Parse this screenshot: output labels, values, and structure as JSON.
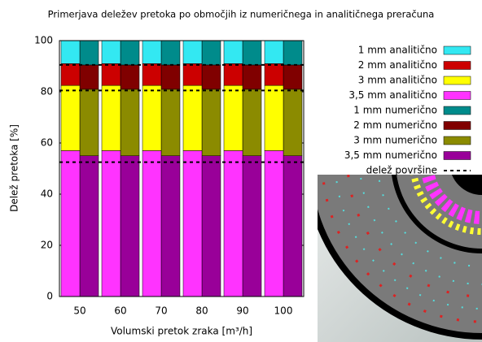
{
  "chart_data": {
    "type": "grouped_stacked_bar",
    "title": "Primerjava deležev pretoka po območjih iz numeričnega in analitičnega preračuna",
    "x_label": "Volumski pretok zraka [m³/h]",
    "y_label": "Delež pretoka [%]",
    "categories": [
      "50",
      "60",
      "70",
      "80",
      "90",
      "100"
    ],
    "series": [
      {
        "name": "1 mm analitično",
        "color": "#33e8f2",
        "stack": 0,
        "values": [
          9,
          9,
          9,
          9,
          9,
          9
        ]
      },
      {
        "name": "2 mm analitično",
        "color": "#cc0000",
        "stack": 0,
        "values": [
          8.5,
          8.5,
          8.5,
          8.5,
          8.5,
          8.5
        ]
      },
      {
        "name": "3 mm analitično",
        "color": "#ffff00",
        "stack": 0,
        "values": [
          25.5,
          25.5,
          25.5,
          25.5,
          25.5,
          25.5
        ]
      },
      {
        "name": "3,5 mm analitično",
        "color": "#ff33ff",
        "stack": 0,
        "values": [
          57,
          57,
          57,
          57,
          57,
          57
        ]
      },
      {
        "name": "1 mm numerično",
        "color": "#008b8b",
        "stack": 1,
        "values": [
          9.5,
          9.5,
          9.5,
          9.5,
          9.5,
          9.5
        ]
      },
      {
        "name": "2 mm numerično",
        "color": "#800000",
        "stack": 1,
        "values": [
          9.5,
          9.5,
          9.5,
          9.5,
          9.5,
          9.5
        ]
      },
      {
        "name": "3 mm numerično",
        "color": "#8b8b00",
        "stack": 1,
        "values": [
          26,
          26,
          26,
          26,
          26,
          26
        ]
      },
      {
        "name": "3,5 mm numerično",
        "color": "#990099",
        "stack": 1,
        "values": [
          55,
          55,
          55,
          55,
          55,
          55
        ]
      }
    ],
    "reference_lines": {
      "name": "delež površine",
      "color": "#000000",
      "values": [
        52.5,
        80.5,
        90.5
      ]
    },
    "ylim": [
      0,
      100
    ],
    "yticks": [
      0,
      20,
      40,
      60,
      80,
      100
    ]
  }
}
